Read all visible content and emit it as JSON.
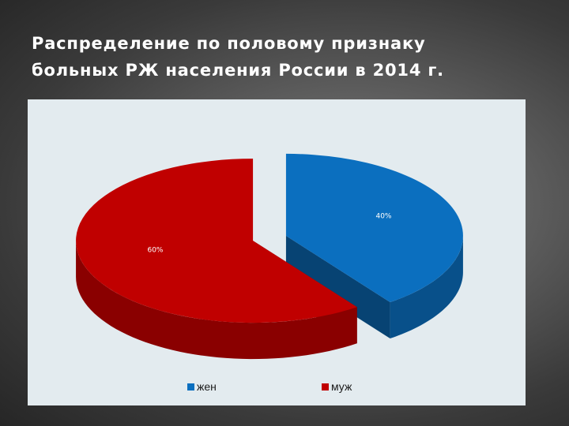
{
  "slide": {
    "title_lines": [
      "Распределение по половому признаку",
      "больных РЖ населения России  в 2014 г."
    ]
  },
  "chart_data": {
    "type": "pie",
    "title": "Распределение по половому признаку больных РЖ населения России  в 2014 г.",
    "style": "3d-exploded",
    "categories": [
      "жен",
      "муж"
    ],
    "values": [
      40,
      60
    ],
    "labels": [
      "40%",
      "60%"
    ],
    "colors": [
      "#0b6fbf",
      "#c00000"
    ],
    "legend": "bottom"
  }
}
